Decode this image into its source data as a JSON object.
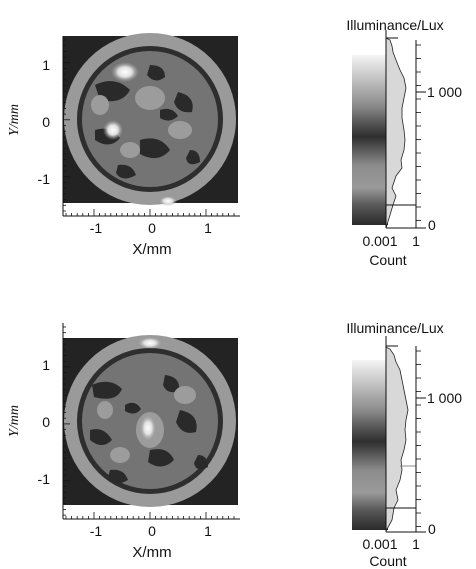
{
  "chart_data": [
    {
      "type": "heatmap",
      "panel": "top",
      "xlabel": "X/mm",
      "ylabel": "Y/mm",
      "xlim": [
        -1.7,
        1.7
      ],
      "ylim": [
        -1.7,
        1.7
      ],
      "xticks": [
        -1,
        0,
        1
      ],
      "yticks": [
        1,
        0,
        -1
      ],
      "colorbar": {
        "title": "Illuminance/Lux",
        "ticks": [
          1000,
          0
        ],
        "tick_labels": [
          "1 000",
          "0"
        ],
        "max_shown": 1500
      },
      "histogram": {
        "xlabel": "Count",
        "xscale": "log",
        "xticks": [
          "0.001",
          "1"
        ]
      }
    },
    {
      "type": "heatmap",
      "panel": "bottom",
      "xlabel": "X/mm",
      "ylabel": "Y/mm",
      "xlim": [
        -1.7,
        1.7
      ],
      "ylim": [
        -1.7,
        1.7
      ],
      "xticks": [
        -1,
        0,
        1
      ],
      "yticks": [
        1,
        0,
        -1
      ],
      "colorbar": {
        "title": "Illuminance/Lux",
        "ticks": [
          1000,
          0
        ],
        "tick_labels": [
          "1 000",
          "0"
        ],
        "max_shown": 1500
      },
      "histogram": {
        "xlabel": "Count",
        "xscale": "log",
        "xticks": [
          "0.001",
          "1"
        ]
      }
    }
  ]
}
